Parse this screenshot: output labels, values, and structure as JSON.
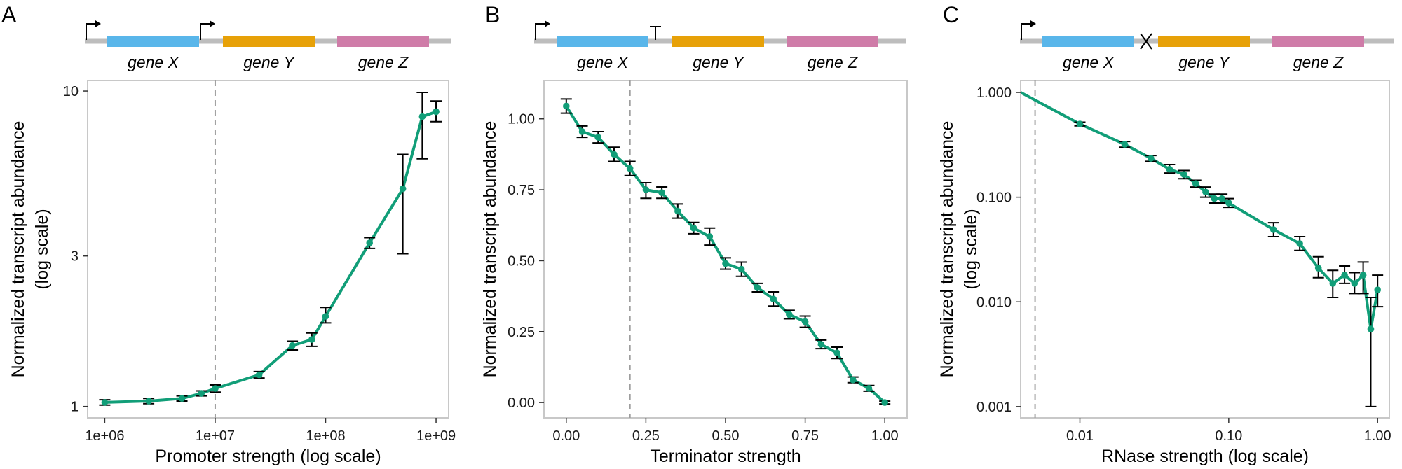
{
  "colors": {
    "series": "#119e78",
    "gene_x": "#59b6ea",
    "gene_y": "#e7a108",
    "gene_z": "#cf7ca8"
  },
  "chart_data": [
    {
      "type": "line",
      "panel": "A",
      "construct": {
        "elements": [
          "promoter",
          "gene X",
          "promoter",
          "gene Y",
          "gene Z"
        ],
        "genes": [
          "gene X",
          "gene Y",
          "gene Z"
        ]
      },
      "xlabel": "Promoter strength (log scale)",
      "ylabel": [
        "Normalized transcript abundance",
        "(log scale)"
      ],
      "xscale": "log",
      "yscale": "log",
      "xlim": [
        700000,
        1300000000
      ],
      "ylim": [
        0.92,
        10.8
      ],
      "xticks": [
        1000000,
        10000000,
        100000000,
        1000000000
      ],
      "xtick_labels": [
        "1e+06",
        "1e+07",
        "1e+08",
        "1e+09"
      ],
      "yticks": [
        1,
        3,
        10
      ],
      "ytick_labels": [
        "1",
        "3",
        "10"
      ],
      "reference_x": 10000000,
      "grid": false,
      "points": [
        {
          "x": 1000000,
          "y": 1.03,
          "lo": 1.01,
          "hi": 1.05
        },
        {
          "x": 2500000,
          "y": 1.04,
          "lo": 1.02,
          "hi": 1.06
        },
        {
          "x": 5000000,
          "y": 1.06,
          "lo": 1.04,
          "hi": 1.08
        },
        {
          "x": 7500000,
          "y": 1.1,
          "lo": 1.08,
          "hi": 1.12
        },
        {
          "x": 10000000,
          "y": 1.14,
          "lo": 1.11,
          "hi": 1.17
        },
        {
          "x": 25000000,
          "y": 1.26,
          "lo": 1.23,
          "hi": 1.29
        },
        {
          "x": 50000000,
          "y": 1.56,
          "lo": 1.51,
          "hi": 1.61
        },
        {
          "x": 75000000,
          "y": 1.63,
          "lo": 1.55,
          "hi": 1.71
        },
        {
          "x": 100000000,
          "y": 1.93,
          "lo": 1.84,
          "hi": 2.06
        },
        {
          "x": 250000000,
          "y": 3.3,
          "lo": 3.17,
          "hi": 3.43
        },
        {
          "x": 500000000,
          "y": 4.9,
          "lo": 3.05,
          "hi": 6.3
        },
        {
          "x": 750000000,
          "y": 8.3,
          "lo": 6.1,
          "hi": 9.9
        },
        {
          "x": 1000000000,
          "y": 8.6,
          "lo": 8.0,
          "hi": 9.3
        }
      ]
    },
    {
      "type": "line",
      "panel": "B",
      "construct": {
        "elements": [
          "promoter",
          "gene X",
          "terminator",
          "gene Y",
          "gene Z"
        ],
        "genes": [
          "gene X",
          "gene Y",
          "gene Z"
        ]
      },
      "xlabel": "Terminator strength",
      "ylabel": [
        "Normalized transcript abundance"
      ],
      "xscale": "linear",
      "yscale": "linear",
      "xlim": [
        -0.07,
        1.07
      ],
      "ylim": [
        -0.054,
        1.135
      ],
      "xticks": [
        0,
        0.25,
        0.5,
        0.75,
        1.0
      ],
      "xtick_labels": [
        "0.00",
        "0.25",
        "0.50",
        "0.75",
        "1.00"
      ],
      "yticks": [
        0,
        0.25,
        0.5,
        0.75,
        1.0
      ],
      "ytick_labels": [
        "0.00",
        "0.25",
        "0.50",
        "0.75",
        "1.00"
      ],
      "reference_x": 0.2,
      "grid": false,
      "points": [
        {
          "x": 0.0,
          "y": 1.045,
          "lo": 1.02,
          "hi": 1.07
        },
        {
          "x": 0.05,
          "y": 0.955,
          "lo": 0.935,
          "hi": 0.975
        },
        {
          "x": 0.1,
          "y": 0.935,
          "lo": 0.915,
          "hi": 0.955
        },
        {
          "x": 0.15,
          "y": 0.875,
          "lo": 0.85,
          "hi": 0.9
        },
        {
          "x": 0.2,
          "y": 0.825,
          "lo": 0.8,
          "hi": 0.85
        },
        {
          "x": 0.25,
          "y": 0.75,
          "lo": 0.72,
          "hi": 0.775
        },
        {
          "x": 0.3,
          "y": 0.74,
          "lo": 0.72,
          "hi": 0.76
        },
        {
          "x": 0.35,
          "y": 0.675,
          "lo": 0.65,
          "hi": 0.7
        },
        {
          "x": 0.4,
          "y": 0.615,
          "lo": 0.595,
          "hi": 0.635
        },
        {
          "x": 0.45,
          "y": 0.585,
          "lo": 0.555,
          "hi": 0.615
        },
        {
          "x": 0.5,
          "y": 0.49,
          "lo": 0.47,
          "hi": 0.51
        },
        {
          "x": 0.55,
          "y": 0.47,
          "lo": 0.445,
          "hi": 0.495
        },
        {
          "x": 0.6,
          "y": 0.405,
          "lo": 0.39,
          "hi": 0.42
        },
        {
          "x": 0.65,
          "y": 0.365,
          "lo": 0.34,
          "hi": 0.39
        },
        {
          "x": 0.7,
          "y": 0.31,
          "lo": 0.295,
          "hi": 0.325
        },
        {
          "x": 0.75,
          "y": 0.285,
          "lo": 0.265,
          "hi": 0.305
        },
        {
          "x": 0.8,
          "y": 0.205,
          "lo": 0.19,
          "hi": 0.22
        },
        {
          "x": 0.85,
          "y": 0.175,
          "lo": 0.155,
          "hi": 0.195
        },
        {
          "x": 0.9,
          "y": 0.08,
          "lo": 0.07,
          "hi": 0.09
        },
        {
          "x": 0.95,
          "y": 0.05,
          "lo": 0.04,
          "hi": 0.06
        },
        {
          "x": 1.0,
          "y": 0.0,
          "lo": -0.005,
          "hi": 0.005
        }
      ]
    },
    {
      "type": "line",
      "panel": "C",
      "construct": {
        "elements": [
          "promoter",
          "gene X",
          "cleavage site",
          "gene Y",
          "gene Z"
        ],
        "genes": [
          "gene X",
          "gene Y",
          "gene Z"
        ]
      },
      "xlabel": "RNase strength (log scale)",
      "ylabel": [
        "Normalized transcript abundance",
        "(log scale)"
      ],
      "xscale": "log",
      "yscale": "log",
      "xlim": [
        0.004,
        1.2
      ],
      "ylim": [
        0.00078,
        1.3
      ],
      "xticks": [
        0.01,
        0.1,
        1.0
      ],
      "xtick_labels": [
        "0.01",
        "0.10",
        "1.00"
      ],
      "yticks": [
        0.001,
        0.01,
        0.1,
        1.0
      ],
      "ytick_labels": [
        "0.001",
        "0.010",
        "0.100",
        "1.000"
      ],
      "reference_x": 0.005,
      "grid": false,
      "points": [
        {
          "x": 0.004,
          "y": 1.0
        },
        {
          "x": 0.01,
          "y": 0.5,
          "lo": 0.48,
          "hi": 0.52
        },
        {
          "x": 0.02,
          "y": 0.32,
          "lo": 0.3,
          "hi": 0.34
        },
        {
          "x": 0.03,
          "y": 0.235,
          "lo": 0.22,
          "hi": 0.25
        },
        {
          "x": 0.04,
          "y": 0.185,
          "lo": 0.17,
          "hi": 0.205
        },
        {
          "x": 0.05,
          "y": 0.165,
          "lo": 0.15,
          "hi": 0.18
        },
        {
          "x": 0.06,
          "y": 0.135,
          "lo": 0.125,
          "hi": 0.145
        },
        {
          "x": 0.07,
          "y": 0.112,
          "lo": 0.1,
          "hi": 0.125
        },
        {
          "x": 0.08,
          "y": 0.097,
          "lo": 0.088,
          "hi": 0.107
        },
        {
          "x": 0.09,
          "y": 0.097,
          "lo": 0.088,
          "hi": 0.107
        },
        {
          "x": 0.1,
          "y": 0.088,
          "lo": 0.08,
          "hi": 0.097
        },
        {
          "x": 0.2,
          "y": 0.049,
          "lo": 0.042,
          "hi": 0.057
        },
        {
          "x": 0.3,
          "y": 0.036,
          "lo": 0.031,
          "hi": 0.042
        },
        {
          "x": 0.4,
          "y": 0.021,
          "lo": 0.017,
          "hi": 0.027
        },
        {
          "x": 0.5,
          "y": 0.015,
          "lo": 0.011,
          "hi": 0.02
        },
        {
          "x": 0.6,
          "y": 0.018,
          "lo": 0.015,
          "hi": 0.022
        },
        {
          "x": 0.7,
          "y": 0.015,
          "lo": 0.012,
          "hi": 0.019
        },
        {
          "x": 0.8,
          "y": 0.018,
          "lo": 0.012,
          "hi": 0.024
        },
        {
          "x": 0.9,
          "y": 0.0055,
          "lo": 0.001,
          "hi": 0.011
        },
        {
          "x": 1.0,
          "y": 0.013,
          "lo": 0.009,
          "hi": 0.018
        }
      ]
    }
  ]
}
